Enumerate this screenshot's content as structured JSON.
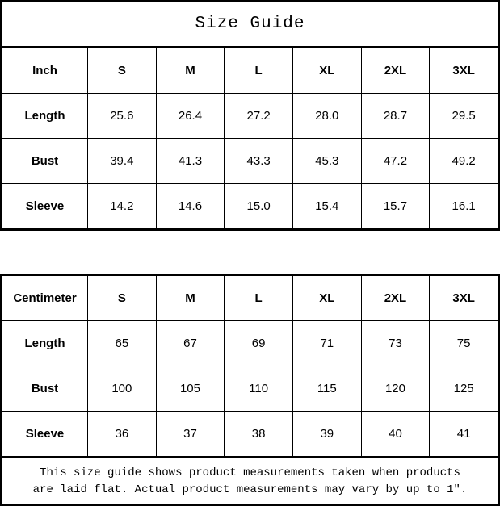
{
  "title": "Size Guide",
  "colors": {
    "background": "#ffffff",
    "text": "#000000",
    "border": "#000000"
  },
  "sizes": [
    "S",
    "M",
    "L",
    "XL",
    "2XL",
    "3XL"
  ],
  "tables": [
    {
      "unit": "Inch",
      "rows": [
        {
          "label": "Length",
          "values": [
            "25.6",
            "26.4",
            "27.2",
            "28.0",
            "28.7",
            "29.5"
          ]
        },
        {
          "label": "Bust",
          "values": [
            "39.4",
            "41.3",
            "43.3",
            "45.3",
            "47.2",
            "49.2"
          ]
        },
        {
          "label": "Sleeve",
          "values": [
            "14.2",
            "14.6",
            "15.0",
            "15.4",
            "15.7",
            "16.1"
          ]
        }
      ]
    },
    {
      "unit": "Centimeter",
      "rows": [
        {
          "label": "Length",
          "values": [
            "65",
            "67",
            "69",
            "71",
            "73",
            "75"
          ]
        },
        {
          "label": "Bust",
          "values": [
            "100",
            "105",
            "110",
            "115",
            "120",
            "125"
          ]
        },
        {
          "label": "Sleeve",
          "values": [
            "36",
            "37",
            "38",
            "39",
            "40",
            "41"
          ]
        }
      ]
    }
  ],
  "footer": {
    "line1": "This size guide shows product measurements taken when products",
    "line2": "are laid flat. Actual product measurements may vary by up to 1″."
  }
}
